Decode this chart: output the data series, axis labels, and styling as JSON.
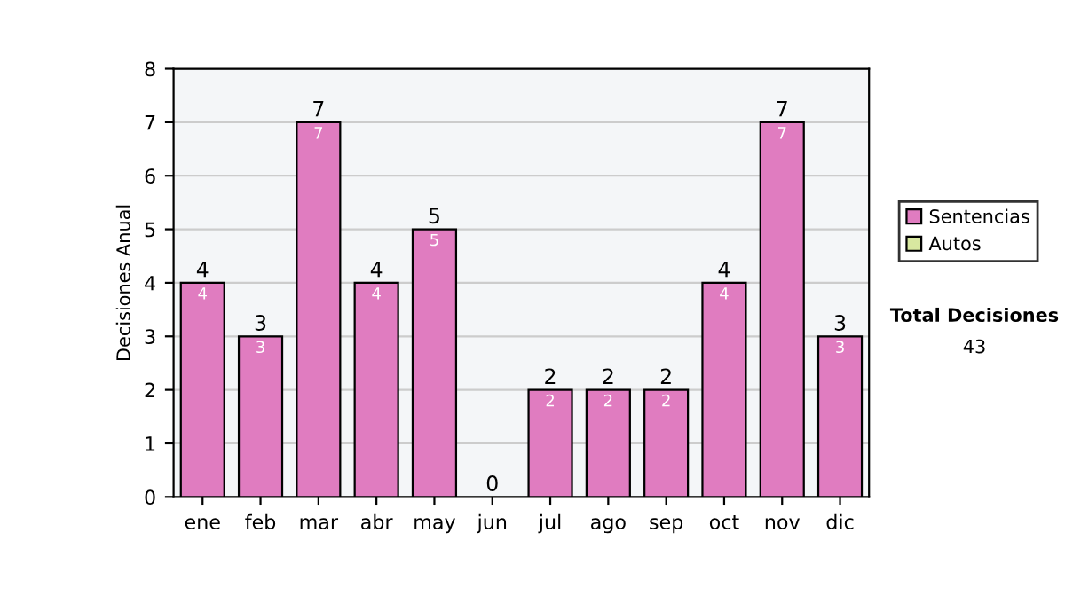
{
  "chart_data": {
    "type": "bar",
    "ylabel": "Decisiones Anual",
    "categories": [
      "ene",
      "feb",
      "mar",
      "abr",
      "may",
      "jun",
      "jul",
      "ago",
      "sep",
      "oct",
      "nov",
      "dic"
    ],
    "stacked": true,
    "series": [
      {
        "name": "Sentencias",
        "color": "#e07cc0",
        "values": [
          4,
          3,
          7,
          4,
          5,
          0,
          2,
          2,
          2,
          4,
          7,
          3
        ],
        "value_labels": [
          "4",
          "3",
          "7",
          "4",
          "5",
          null,
          "2",
          "2",
          "2",
          "4",
          "7",
          "3"
        ]
      },
      {
        "name": "Autos",
        "color": "#d8e8a0",
        "values": [
          0,
          0,
          0,
          0,
          0,
          0,
          0,
          0,
          0,
          0,
          0,
          0
        ]
      }
    ],
    "totals": [
      "4",
      "3",
      "7",
      "4",
      "5",
      "0",
      "2",
      "2",
      "2",
      "4",
      "7",
      "3"
    ],
    "ylim": [
      0,
      8
    ],
    "yticks": [
      0,
      1,
      2,
      3,
      4,
      5,
      6,
      7,
      8
    ],
    "grid": "y",
    "legend": "right",
    "annotations": [
      "Total Decisiones",
      "43"
    ]
  }
}
